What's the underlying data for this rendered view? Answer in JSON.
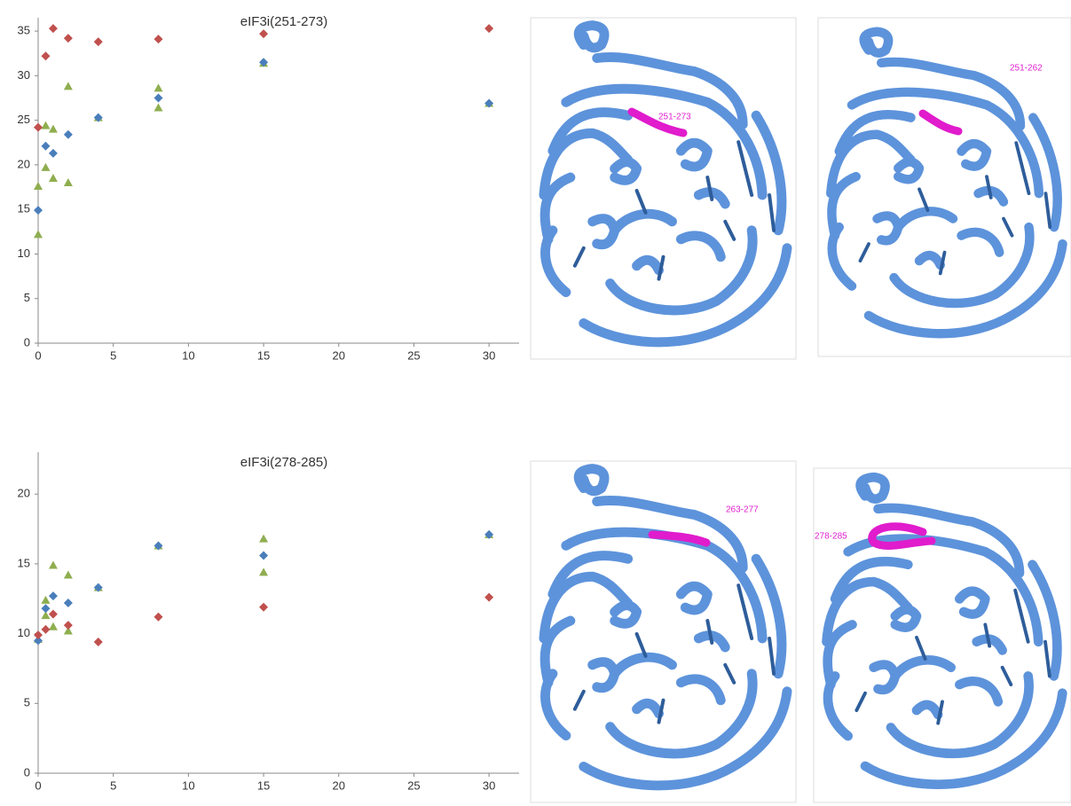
{
  "chart_data": [
    {
      "type": "scatter",
      "title": "eIF3i(251-273)",
      "xlim": [
        0,
        32
      ],
      "xticks": [
        0,
        5,
        10,
        15,
        20,
        25,
        30
      ],
      "ylim": [
        0,
        36.5
      ],
      "yticks": [
        0,
        5,
        10,
        15,
        20,
        25,
        30,
        35
      ],
      "series": [
        {
          "color": "#8fae4f",
          "marker": "triangle",
          "x": [
            0,
            0,
            0.5,
            0.5,
            1,
            1,
            2,
            2,
            4,
            8,
            8,
            15,
            30
          ],
          "values": [
            17.6,
            12.2,
            24.4,
            19.7,
            24.0,
            18.5,
            28.8,
            18.0,
            25.3,
            28.6,
            26.4,
            31.4,
            26.9
          ]
        },
        {
          "color": "#4a7ebb",
          "marker": "diamond",
          "x": [
            0,
            0.5,
            1,
            2,
            4,
            8,
            15,
            30
          ],
          "values": [
            14.9,
            22.1,
            21.3,
            23.4,
            25.3,
            27.5,
            31.5,
            26.9
          ]
        },
        {
          "color": "#c0504d",
          "marker": "diamond",
          "x": [
            0,
            0.5,
            1,
            2,
            4,
            8,
            15,
            30
          ],
          "values": [
            24.2,
            32.2,
            35.3,
            34.2,
            33.8,
            34.1,
            34.7,
            35.3
          ]
        }
      ]
    },
    {
      "type": "scatter",
      "title": "eIF3i(278-285)",
      "xlim": [
        0,
        32
      ],
      "xticks": [
        0,
        5,
        10,
        15,
        20,
        25,
        30
      ],
      "ylim": [
        0,
        23
      ],
      "yticks": [
        0,
        5,
        10,
        15,
        20
      ],
      "series": [
        {
          "color": "#8fae4f",
          "marker": "triangle",
          "x": [
            0,
            0.5,
            0.5,
            1,
            1,
            2,
            2,
            4,
            8,
            15,
            15,
            30
          ],
          "values": [
            9.6,
            12.4,
            11.3,
            14.9,
            10.5,
            14.2,
            10.2,
            13.3,
            16.3,
            16.8,
            14.4,
            17.1
          ]
        },
        {
          "color": "#4a7ebb",
          "marker": "diamond",
          "x": [
            0,
            0.5,
            1,
            2,
            4,
            8,
            15,
            30
          ],
          "values": [
            9.5,
            11.8,
            12.7,
            12.2,
            13.3,
            16.3,
            15.6,
            17.1
          ]
        },
        {
          "color": "#c0504d",
          "marker": "diamond",
          "x": [
            0,
            0.5,
            1,
            2,
            4,
            8,
            15,
            30
          ],
          "values": [
            9.9,
            10.3,
            11.4,
            10.6,
            9.4,
            11.2,
            11.9,
            12.6
          ]
        }
      ]
    }
  ],
  "structure_labels": [
    "251-273",
    "251-262",
    "263-277",
    "278-285"
  ]
}
